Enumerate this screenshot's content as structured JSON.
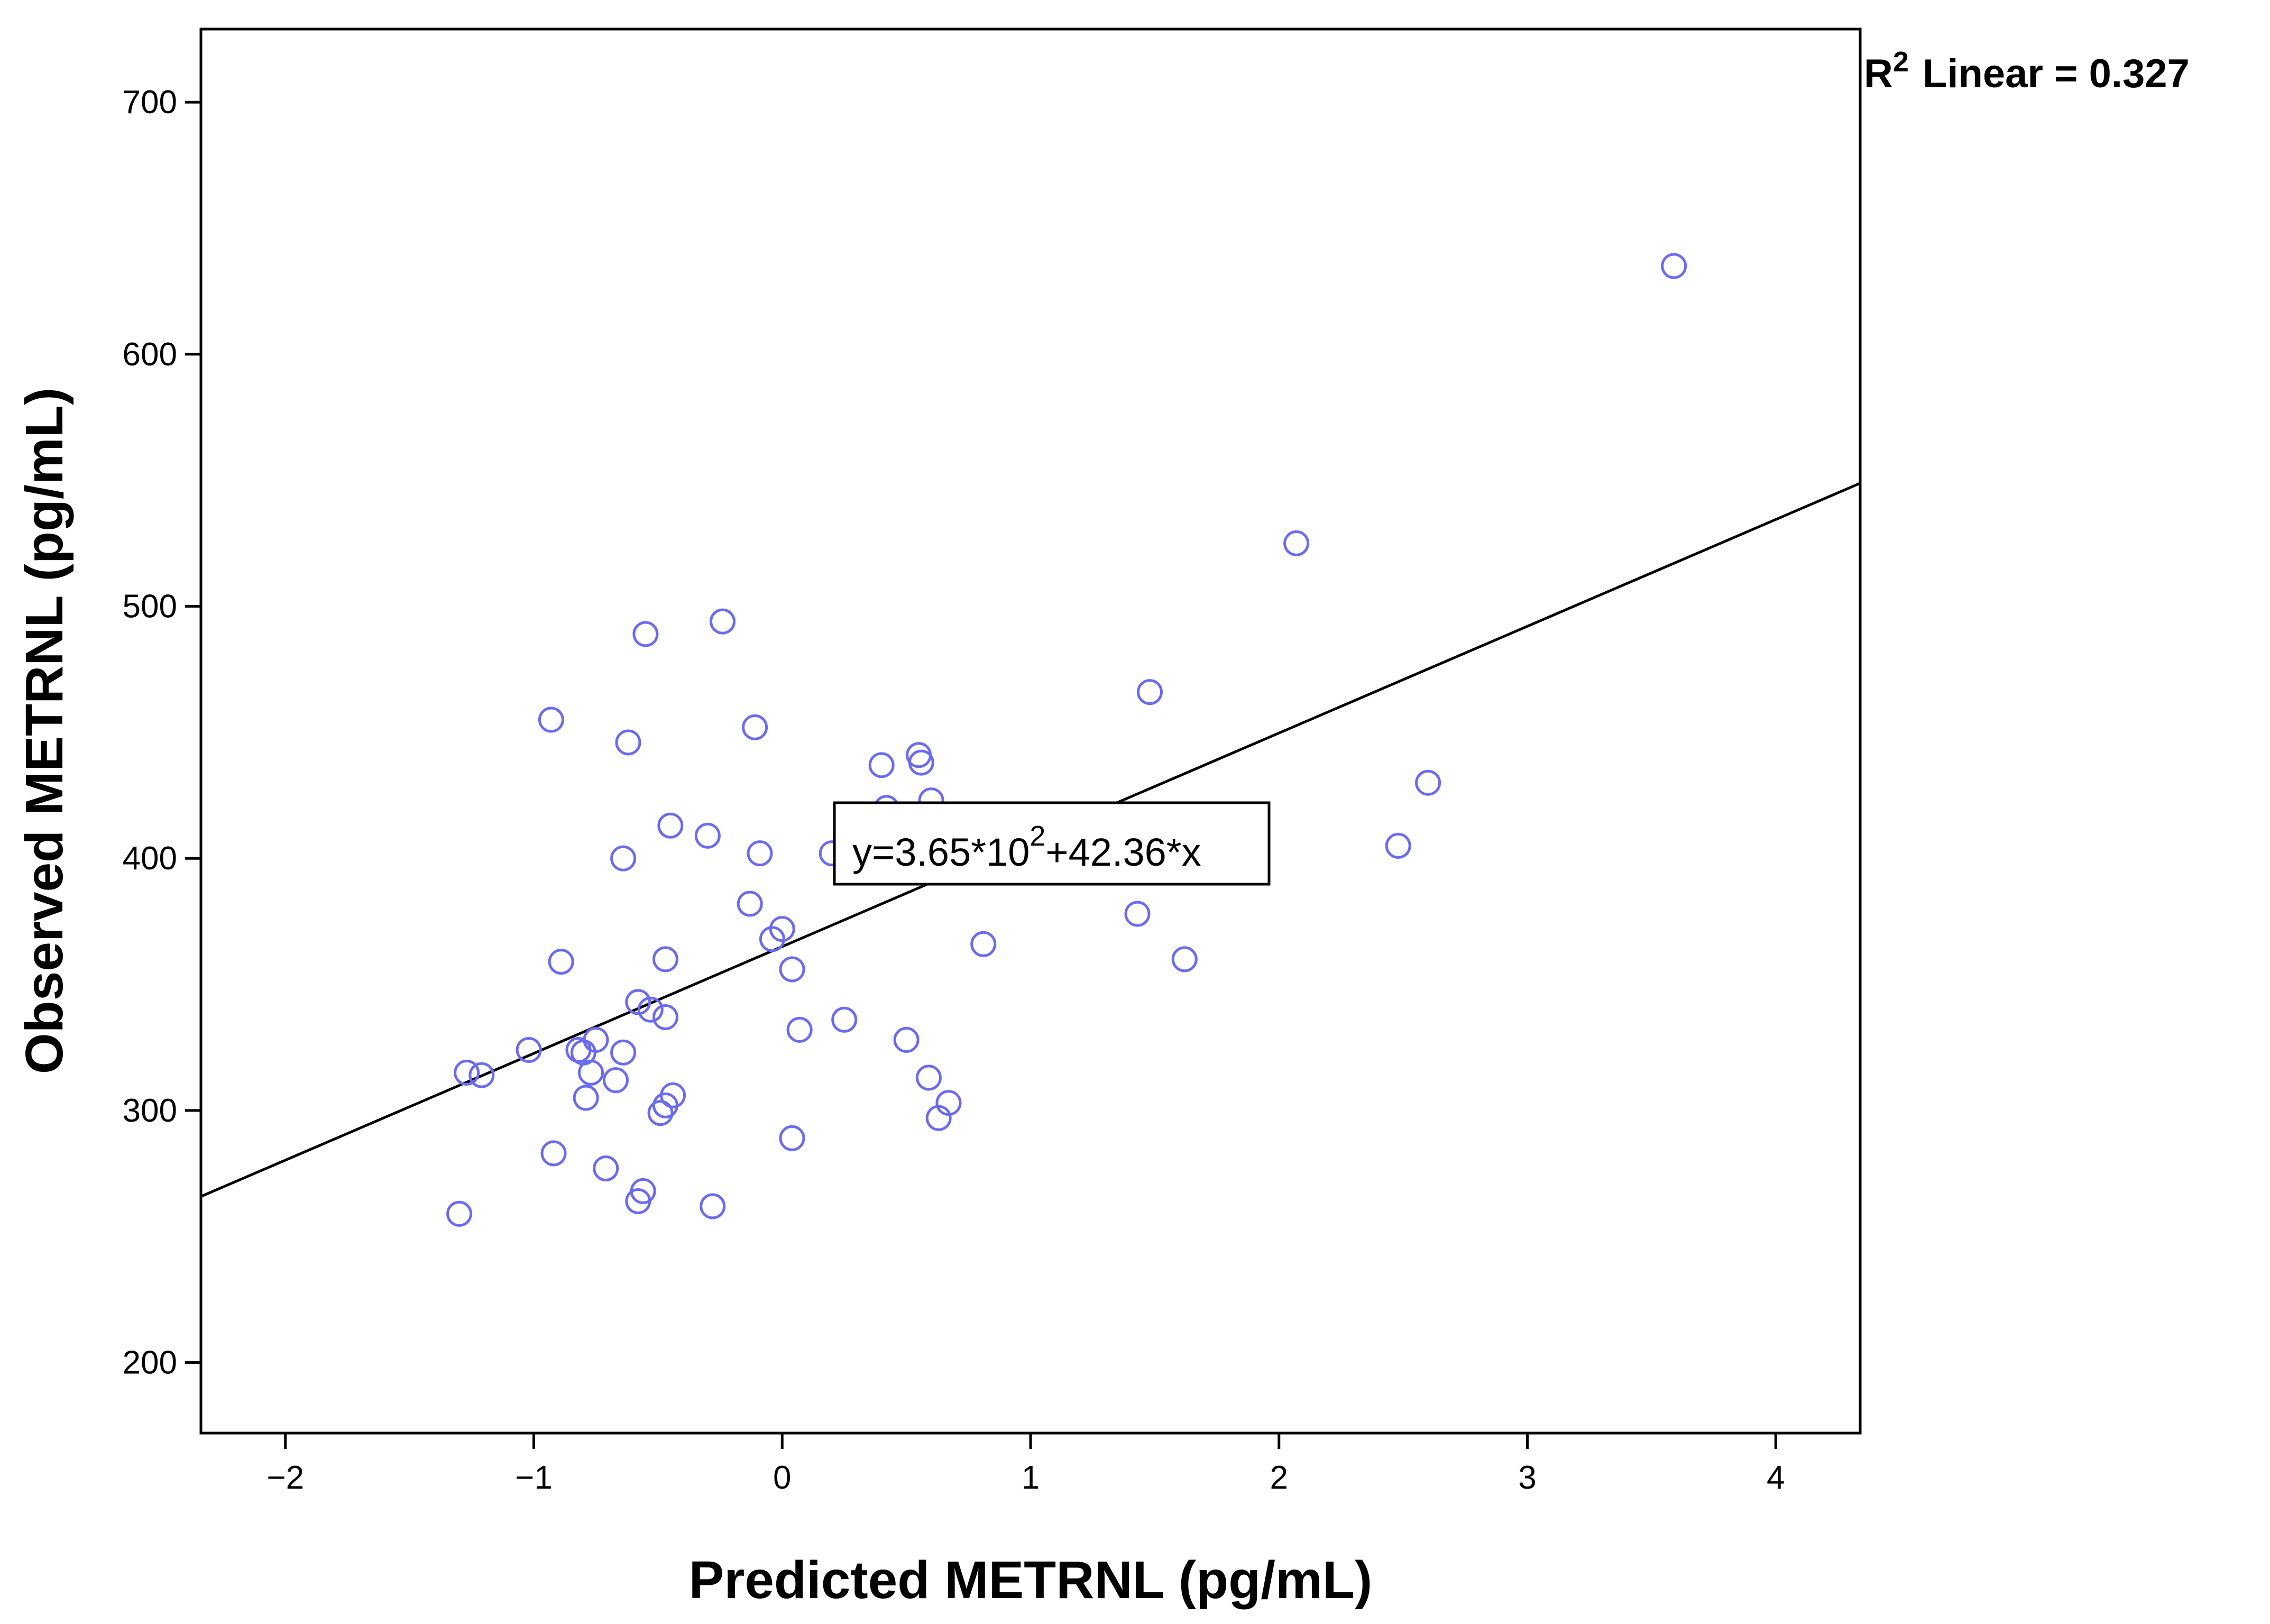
{
  "chart_data": {
    "type": "scatter",
    "title": "",
    "xlabel": "Predicted METRNL (pg/mL)",
    "ylabel": "Observed METRNL (pg/mL)",
    "xlim": [
      -2.34,
      4.34
    ],
    "ylim": [
      172,
      729
    ],
    "xticks": [
      -2,
      -1,
      0,
      1,
      2,
      3,
      4
    ],
    "xtick_labels": [
      "−2",
      "−1",
      "0",
      "1",
      "2",
      "3",
      "4"
    ],
    "yticks": [
      200,
      300,
      400,
      500,
      600,
      700
    ],
    "ytick_labels": [
      "200",
      "300",
      "400",
      "500",
      "600",
      "700"
    ],
    "grid": false,
    "marker_color": "#6b6bf0",
    "fit_line": {
      "intercept": 365,
      "slope": 42.36,
      "color": "#000000"
    },
    "r2_annotation": {
      "prefix": "R",
      "superscript": "2",
      "text": "Linear = 0.327"
    },
    "equation_annotation": {
      "pre": "y=3.65*10",
      "sup": "2",
      "post": "+42.36*x",
      "anchor_x": 1.0,
      "anchor_y": 401
    },
    "points": [
      {
        "x": 3.59,
        "y": 635
      },
      {
        "x": 2.07,
        "y": 525
      },
      {
        "x": 1.48,
        "y": 466
      },
      {
        "x": 2.6,
        "y": 430
      },
      {
        "x": 2.48,
        "y": 405
      },
      {
        "x": 1.43,
        "y": 378
      },
      {
        "x": 1.62,
        "y": 360
      },
      {
        "x": 0.81,
        "y": 366
      },
      {
        "x": 0.55,
        "y": 441
      },
      {
        "x": 0.56,
        "y": 438
      },
      {
        "x": 0.4,
        "y": 437
      },
      {
        "x": 0.6,
        "y": 423
      },
      {
        "x": 0.42,
        "y": 420
      },
      {
        "x": 0.2,
        "y": 402
      },
      {
        "x": 0.25,
        "y": 336
      },
      {
        "x": 0.5,
        "y": 328
      },
      {
        "x": 0.59,
        "y": 313
      },
      {
        "x": 0.67,
        "y": 303
      },
      {
        "x": 0.63,
        "y": 297
      },
      {
        "x": 0.04,
        "y": 289
      },
      {
        "x": 0.07,
        "y": 332
      },
      {
        "x": 0.04,
        "y": 356
      },
      {
        "x": -0.04,
        "y": 368
      },
      {
        "x": 0.0,
        "y": 372
      },
      {
        "x": -0.13,
        "y": 382
      },
      {
        "x": -0.09,
        "y": 402
      },
      {
        "x": -0.11,
        "y": 452
      },
      {
        "x": -0.24,
        "y": 494
      },
      {
        "x": -0.3,
        "y": 409
      },
      {
        "x": -0.55,
        "y": 489
      },
      {
        "x": -0.62,
        "y": 446
      },
      {
        "x": -0.93,
        "y": 455
      },
      {
        "x": -0.45,
        "y": 413
      },
      {
        "x": -0.64,
        "y": 400
      },
      {
        "x": -0.47,
        "y": 360
      },
      {
        "x": -0.89,
        "y": 359
      },
      {
        "x": -0.58,
        "y": 343
      },
      {
        "x": -0.53,
        "y": 340
      },
      {
        "x": -0.47,
        "y": 337
      },
      {
        "x": -0.64,
        "y": 323
      },
      {
        "x": -0.75,
        "y": 328
      },
      {
        "x": -0.82,
        "y": 324
      },
      {
        "x": -1.02,
        "y": 324
      },
      {
        "x": -0.8,
        "y": 323
      },
      {
        "x": -0.77,
        "y": 315
      },
      {
        "x": -0.67,
        "y": 312
      },
      {
        "x": -0.79,
        "y": 305
      },
      {
        "x": -0.44,
        "y": 306
      },
      {
        "x": -0.47,
        "y": 302
      },
      {
        "x": -0.49,
        "y": 299
      },
      {
        "x": -1.27,
        "y": 315
      },
      {
        "x": -1.21,
        "y": 314
      },
      {
        "x": -0.92,
        "y": 283
      },
      {
        "x": -0.71,
        "y": 277
      },
      {
        "x": -0.56,
        "y": 268
      },
      {
        "x": -0.58,
        "y": 264
      },
      {
        "x": -0.28,
        "y": 262
      },
      {
        "x": -1.3,
        "y": 259
      }
    ]
  }
}
